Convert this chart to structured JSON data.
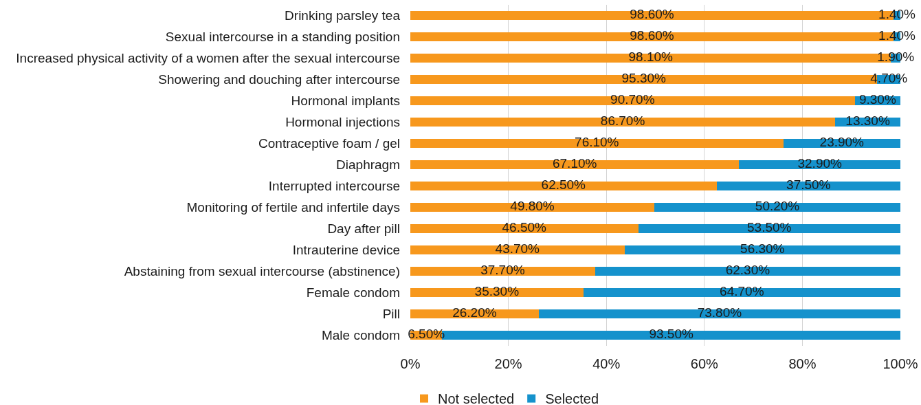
{
  "chart_data": {
    "type": "bar",
    "orientation": "horizontal",
    "stacked": true,
    "categories": [
      "Drinking parsley tea",
      "Sexual intercourse in a standing position",
      "Increased physical activity of a women after the sexual intercourse",
      "Showering and douching after intercourse",
      "Hormonal implants",
      "Hormonal injections",
      "Contraceptive foam / gel",
      "Diaphragm",
      "Interrupted intercourse",
      "Monitoring of fertile and infertile days",
      "Day after pill",
      "Intrauterine device",
      "Abstaining from sexual intercourse (abstinence)",
      "Female condom",
      "Pill",
      "Male condom"
    ],
    "series": [
      {
        "name": "Not selected",
        "color": "#f7981d",
        "values": [
          98.6,
          98.6,
          98.1,
          95.3,
          90.7,
          86.7,
          76.1,
          67.1,
          62.5,
          49.8,
          46.5,
          43.7,
          37.7,
          35.3,
          26.2,
          6.5
        ],
        "value_labels": [
          "98.60%",
          "98.60%",
          "98.10%",
          "95.30%",
          "90.70%",
          "86.70%",
          "76.10%",
          "67.10%",
          "62.50%",
          "49.80%",
          "46.50%",
          "43.70%",
          "37.70%",
          "35.30%",
          "26.20%",
          "6.50%"
        ]
      },
      {
        "name": "Selected",
        "color": "#1592cc",
        "values": [
          1.4,
          1.4,
          1.9,
          4.7,
          9.3,
          13.3,
          23.9,
          32.9,
          37.5,
          50.2,
          53.5,
          56.3,
          62.3,
          64.7,
          73.8,
          93.5
        ],
        "value_labels": [
          "1.40%",
          "1.40%",
          "1.90%",
          "4.70%",
          "9.30%",
          "13.30%",
          "23.90%",
          "32.90%",
          "37.50%",
          "50.20%",
          "53.50%",
          "56.30%",
          "62.30%",
          "64.70%",
          "73.80%",
          "93.50%"
        ]
      }
    ],
    "xlim": [
      0,
      100
    ],
    "xticks": [
      {
        "value": 0,
        "label": "0%"
      },
      {
        "value": 20,
        "label": "20%"
      },
      {
        "value": 40,
        "label": "40%"
      },
      {
        "value": 60,
        "label": "60%"
      },
      {
        "value": 80,
        "label": "80%"
      },
      {
        "value": 100,
        "label": "100%"
      }
    ],
    "grid": "x",
    "legend": "bottom"
  }
}
